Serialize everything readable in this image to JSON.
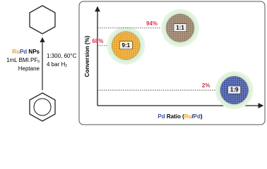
{
  "chart_data": {
    "type": "scatter",
    "x_label_parts": [
      "Pd",
      " Ratio (",
      "Ru",
      "/",
      "Pd",
      ")"
    ],
    "y_label": "Conversion (%)",
    "categories": [
      "9:1",
      "1:1",
      "1:9"
    ],
    "values": [
      68,
      94,
      2
    ],
    "value_labels": [
      "68%",
      "94%",
      "2%"
    ],
    "ylim": [
      0,
      100
    ],
    "label_color": "#d9304a",
    "ru_color": "#e8a020",
    "pd_color": "#3b4fa0"
  },
  "scheme": {
    "catalyst_parts": [
      "Ru",
      "Pd",
      " NPs"
    ],
    "ionic_liquid_parts": [
      "1mL BMI.PF",
      "6"
    ],
    "solvent": "Heptane",
    "conditions": "1:300, 60°C",
    "pressure_parts": [
      "4 bar H",
      "2"
    ]
  }
}
